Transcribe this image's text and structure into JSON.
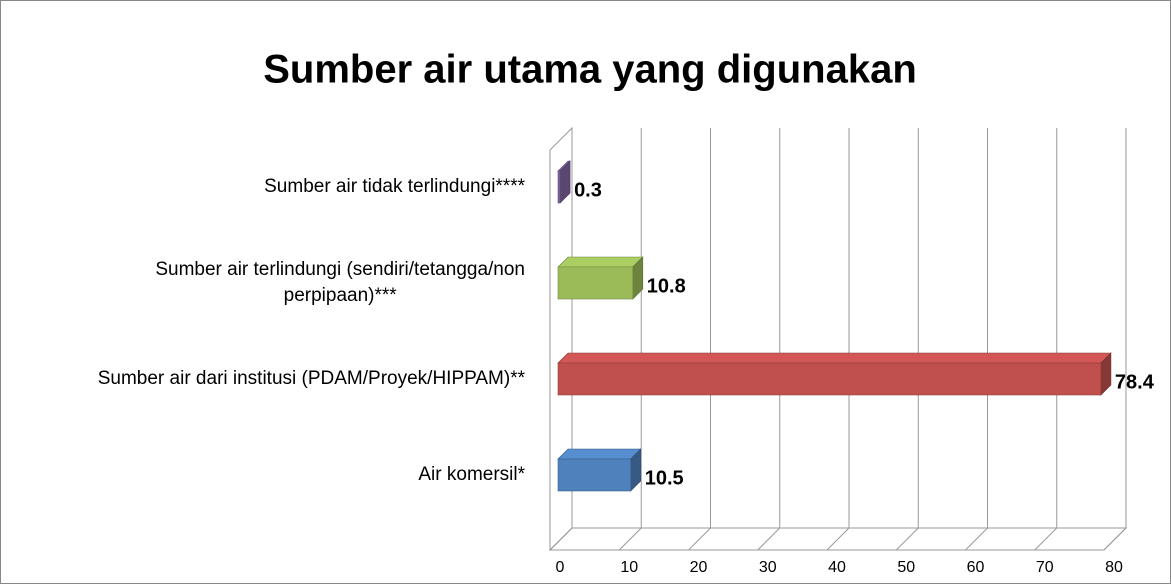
{
  "chart_data": {
    "type": "bar3d",
    "orientation": "horizontal",
    "title": "Sumber air utama yang digunakan",
    "categories": [
      "Air komersil*",
      "Sumber air dari institusi (PDAM/Proyek/HIPPAM)**",
      "Sumber air terlindungi (sendiri/tetangga/non perpipaan)***",
      "Sumber air tidak terlindungi****"
    ],
    "values": [
      10.5,
      78.4,
      10.8,
      0.3
    ],
    "colors": [
      "#4f81bd",
      "#c0504d",
      "#9bbb59",
      "#8064a2"
    ],
    "xlim": [
      0,
      80
    ],
    "xticks": [
      0,
      10,
      20,
      30,
      40,
      50,
      60,
      70,
      80
    ],
    "grid": true
  }
}
